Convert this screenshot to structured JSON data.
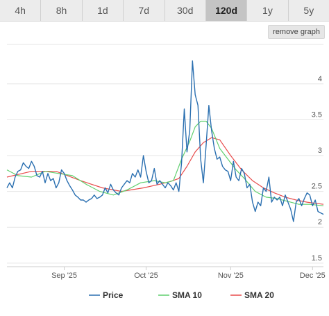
{
  "timeframes": [
    {
      "label": "4h",
      "active": false
    },
    {
      "label": "8h",
      "active": false
    },
    {
      "label": "1d",
      "active": false
    },
    {
      "label": "7d",
      "active": false
    },
    {
      "label": "30d",
      "active": false
    },
    {
      "label": "120d",
      "active": true
    },
    {
      "label": "1y",
      "active": false
    },
    {
      "label": "5y",
      "active": false
    }
  ],
  "remove_graph_label": "remove graph",
  "chart_data": {
    "type": "line",
    "xlabel": "",
    "ylabel": "",
    "ylim": [
      1.45,
      4.55
    ],
    "y_ticks": [
      1.5,
      2,
      2.5,
      3,
      3.5,
      4
    ],
    "y_tick_labels": [
      "1.5",
      "2",
      "2.5",
      "3",
      "3.5",
      "4"
    ],
    "x_range": [
      "2025-08-11",
      "2025-12-05"
    ],
    "x_ticks": [
      {
        "date": "2025-09-01",
        "label": "Sep '25"
      },
      {
        "date": "2025-10-01",
        "label": "Oct '25"
      },
      {
        "date": "2025-11-01",
        "label": "Nov '25"
      },
      {
        "date": "2025-12-01",
        "label": "Dec '25"
      }
    ],
    "grid": true,
    "legend_position": "bottom",
    "series": [
      {
        "name": "Price",
        "color": "#2a6fb0",
        "dates": [
          "2025-08-11",
          "2025-08-12",
          "2025-08-13",
          "2025-08-14",
          "2025-08-15",
          "2025-08-16",
          "2025-08-17",
          "2025-08-18",
          "2025-08-19",
          "2025-08-20",
          "2025-08-21",
          "2025-08-22",
          "2025-08-23",
          "2025-08-24",
          "2025-08-25",
          "2025-08-26",
          "2025-08-27",
          "2025-08-28",
          "2025-08-29",
          "2025-08-30",
          "2025-08-31",
          "2025-09-01",
          "2025-09-02",
          "2025-09-03",
          "2025-09-04",
          "2025-09-05",
          "2025-09-06",
          "2025-09-07",
          "2025-09-08",
          "2025-09-09",
          "2025-09-10",
          "2025-09-11",
          "2025-09-12",
          "2025-09-13",
          "2025-09-14",
          "2025-09-15",
          "2025-09-16",
          "2025-09-17",
          "2025-09-18",
          "2025-09-19",
          "2025-09-20",
          "2025-09-21",
          "2025-09-22",
          "2025-09-23",
          "2025-09-24",
          "2025-09-25",
          "2025-09-26",
          "2025-09-27",
          "2025-09-28",
          "2025-09-29",
          "2025-09-30",
          "2025-10-01",
          "2025-10-02",
          "2025-10-03",
          "2025-10-04",
          "2025-10-05",
          "2025-10-06",
          "2025-10-07",
          "2025-10-08",
          "2025-10-09",
          "2025-10-10",
          "2025-10-11",
          "2025-10-12",
          "2025-10-13",
          "2025-10-14",
          "2025-10-15",
          "2025-10-16",
          "2025-10-17",
          "2025-10-18",
          "2025-10-19",
          "2025-10-20",
          "2025-10-21",
          "2025-10-22",
          "2025-10-23",
          "2025-10-24",
          "2025-10-25",
          "2025-10-26",
          "2025-10-27",
          "2025-10-28",
          "2025-10-29",
          "2025-10-30",
          "2025-10-31",
          "2025-11-01",
          "2025-11-02",
          "2025-11-03",
          "2025-11-04",
          "2025-11-05",
          "2025-11-06",
          "2025-11-07",
          "2025-11-08",
          "2025-11-09",
          "2025-11-10",
          "2025-11-11",
          "2025-11-12",
          "2025-11-13",
          "2025-11-14",
          "2025-11-15",
          "2025-11-16",
          "2025-11-17",
          "2025-11-18",
          "2025-11-19",
          "2025-11-20",
          "2025-11-21",
          "2025-11-22",
          "2025-11-23",
          "2025-11-24",
          "2025-11-25",
          "2025-11-26",
          "2025-11-27",
          "2025-11-28",
          "2025-11-29",
          "2025-11-30",
          "2025-12-01",
          "2025-12-02",
          "2025-12-03",
          "2025-12-04",
          "2025-12-05"
        ],
        "values": [
          2.55,
          2.62,
          2.55,
          2.7,
          2.78,
          2.8,
          2.9,
          2.85,
          2.82,
          2.92,
          2.85,
          2.72,
          2.7,
          2.78,
          2.62,
          2.75,
          2.65,
          2.68,
          2.55,
          2.62,
          2.8,
          2.75,
          2.65,
          2.58,
          2.52,
          2.45,
          2.42,
          2.38,
          2.38,
          2.35,
          2.38,
          2.4,
          2.45,
          2.4,
          2.42,
          2.45,
          2.55,
          2.48,
          2.6,
          2.52,
          2.48,
          2.45,
          2.55,
          2.6,
          2.65,
          2.62,
          2.75,
          2.7,
          2.8,
          2.7,
          3.0,
          2.78,
          2.62,
          2.65,
          2.82,
          2.6,
          2.65,
          2.6,
          2.55,
          2.62,
          2.58,
          2.52,
          2.62,
          2.5,
          2.9,
          3.65,
          3.05,
          3.35,
          4.32,
          3.85,
          3.7,
          2.95,
          2.62,
          3.15,
          3.7,
          3.35,
          3.1,
          2.95,
          2.98,
          2.85,
          2.8,
          2.78,
          2.65,
          2.92,
          2.7,
          2.65,
          2.82,
          2.75,
          2.55,
          2.6,
          2.35,
          2.22,
          2.35,
          2.3,
          2.55,
          2.5,
          2.7,
          2.35,
          2.42,
          2.38,
          2.42,
          2.3,
          2.45,
          2.35,
          2.25,
          2.08,
          2.35,
          2.4,
          2.3,
          2.4,
          2.48,
          2.45,
          2.3,
          2.38,
          2.22,
          2.2,
          2.18
        ]
      },
      {
        "name": "SMA 10",
        "color": "#5fcf6e",
        "dates": [
          "2025-08-11",
          "2025-08-15",
          "2025-08-20",
          "2025-08-25",
          "2025-08-30",
          "2025-09-04",
          "2025-09-09",
          "2025-09-14",
          "2025-09-19",
          "2025-09-24",
          "2025-09-29",
          "2025-10-04",
          "2025-10-08",
          "2025-10-11",
          "2025-10-14",
          "2025-10-17",
          "2025-10-19",
          "2025-10-21",
          "2025-10-23",
          "2025-10-25",
          "2025-10-28",
          "2025-10-31",
          "2025-11-03",
          "2025-11-06",
          "2025-11-10",
          "2025-11-14",
          "2025-11-18",
          "2025-11-22",
          "2025-11-26",
          "2025-11-30",
          "2025-12-05"
        ],
        "values": [
          2.8,
          2.72,
          2.7,
          2.78,
          2.75,
          2.72,
          2.6,
          2.5,
          2.45,
          2.52,
          2.62,
          2.65,
          2.62,
          2.65,
          2.95,
          3.2,
          3.4,
          3.48,
          3.48,
          3.38,
          3.1,
          2.95,
          2.8,
          2.68,
          2.5,
          2.42,
          2.4,
          2.36,
          2.32,
          2.32,
          2.3
        ]
      },
      {
        "name": "SMA 20",
        "color": "#e84c4c",
        "dates": [
          "2025-08-11",
          "2025-08-20",
          "2025-08-29",
          "2025-09-07",
          "2025-09-15",
          "2025-09-22",
          "2025-09-30",
          "2025-10-06",
          "2025-10-10",
          "2025-10-13",
          "2025-10-16",
          "2025-10-19",
          "2025-10-22",
          "2025-10-25",
          "2025-10-28",
          "2025-11-01",
          "2025-11-05",
          "2025-11-09",
          "2025-11-13",
          "2025-11-17",
          "2025-11-21",
          "2025-11-25",
          "2025-11-29",
          "2025-12-05"
        ],
        "values": [
          2.7,
          2.78,
          2.78,
          2.65,
          2.55,
          2.5,
          2.55,
          2.6,
          2.64,
          2.68,
          2.85,
          3.05,
          3.18,
          3.25,
          3.22,
          3.0,
          2.8,
          2.65,
          2.55,
          2.48,
          2.42,
          2.38,
          2.35,
          2.32
        ]
      }
    ]
  }
}
